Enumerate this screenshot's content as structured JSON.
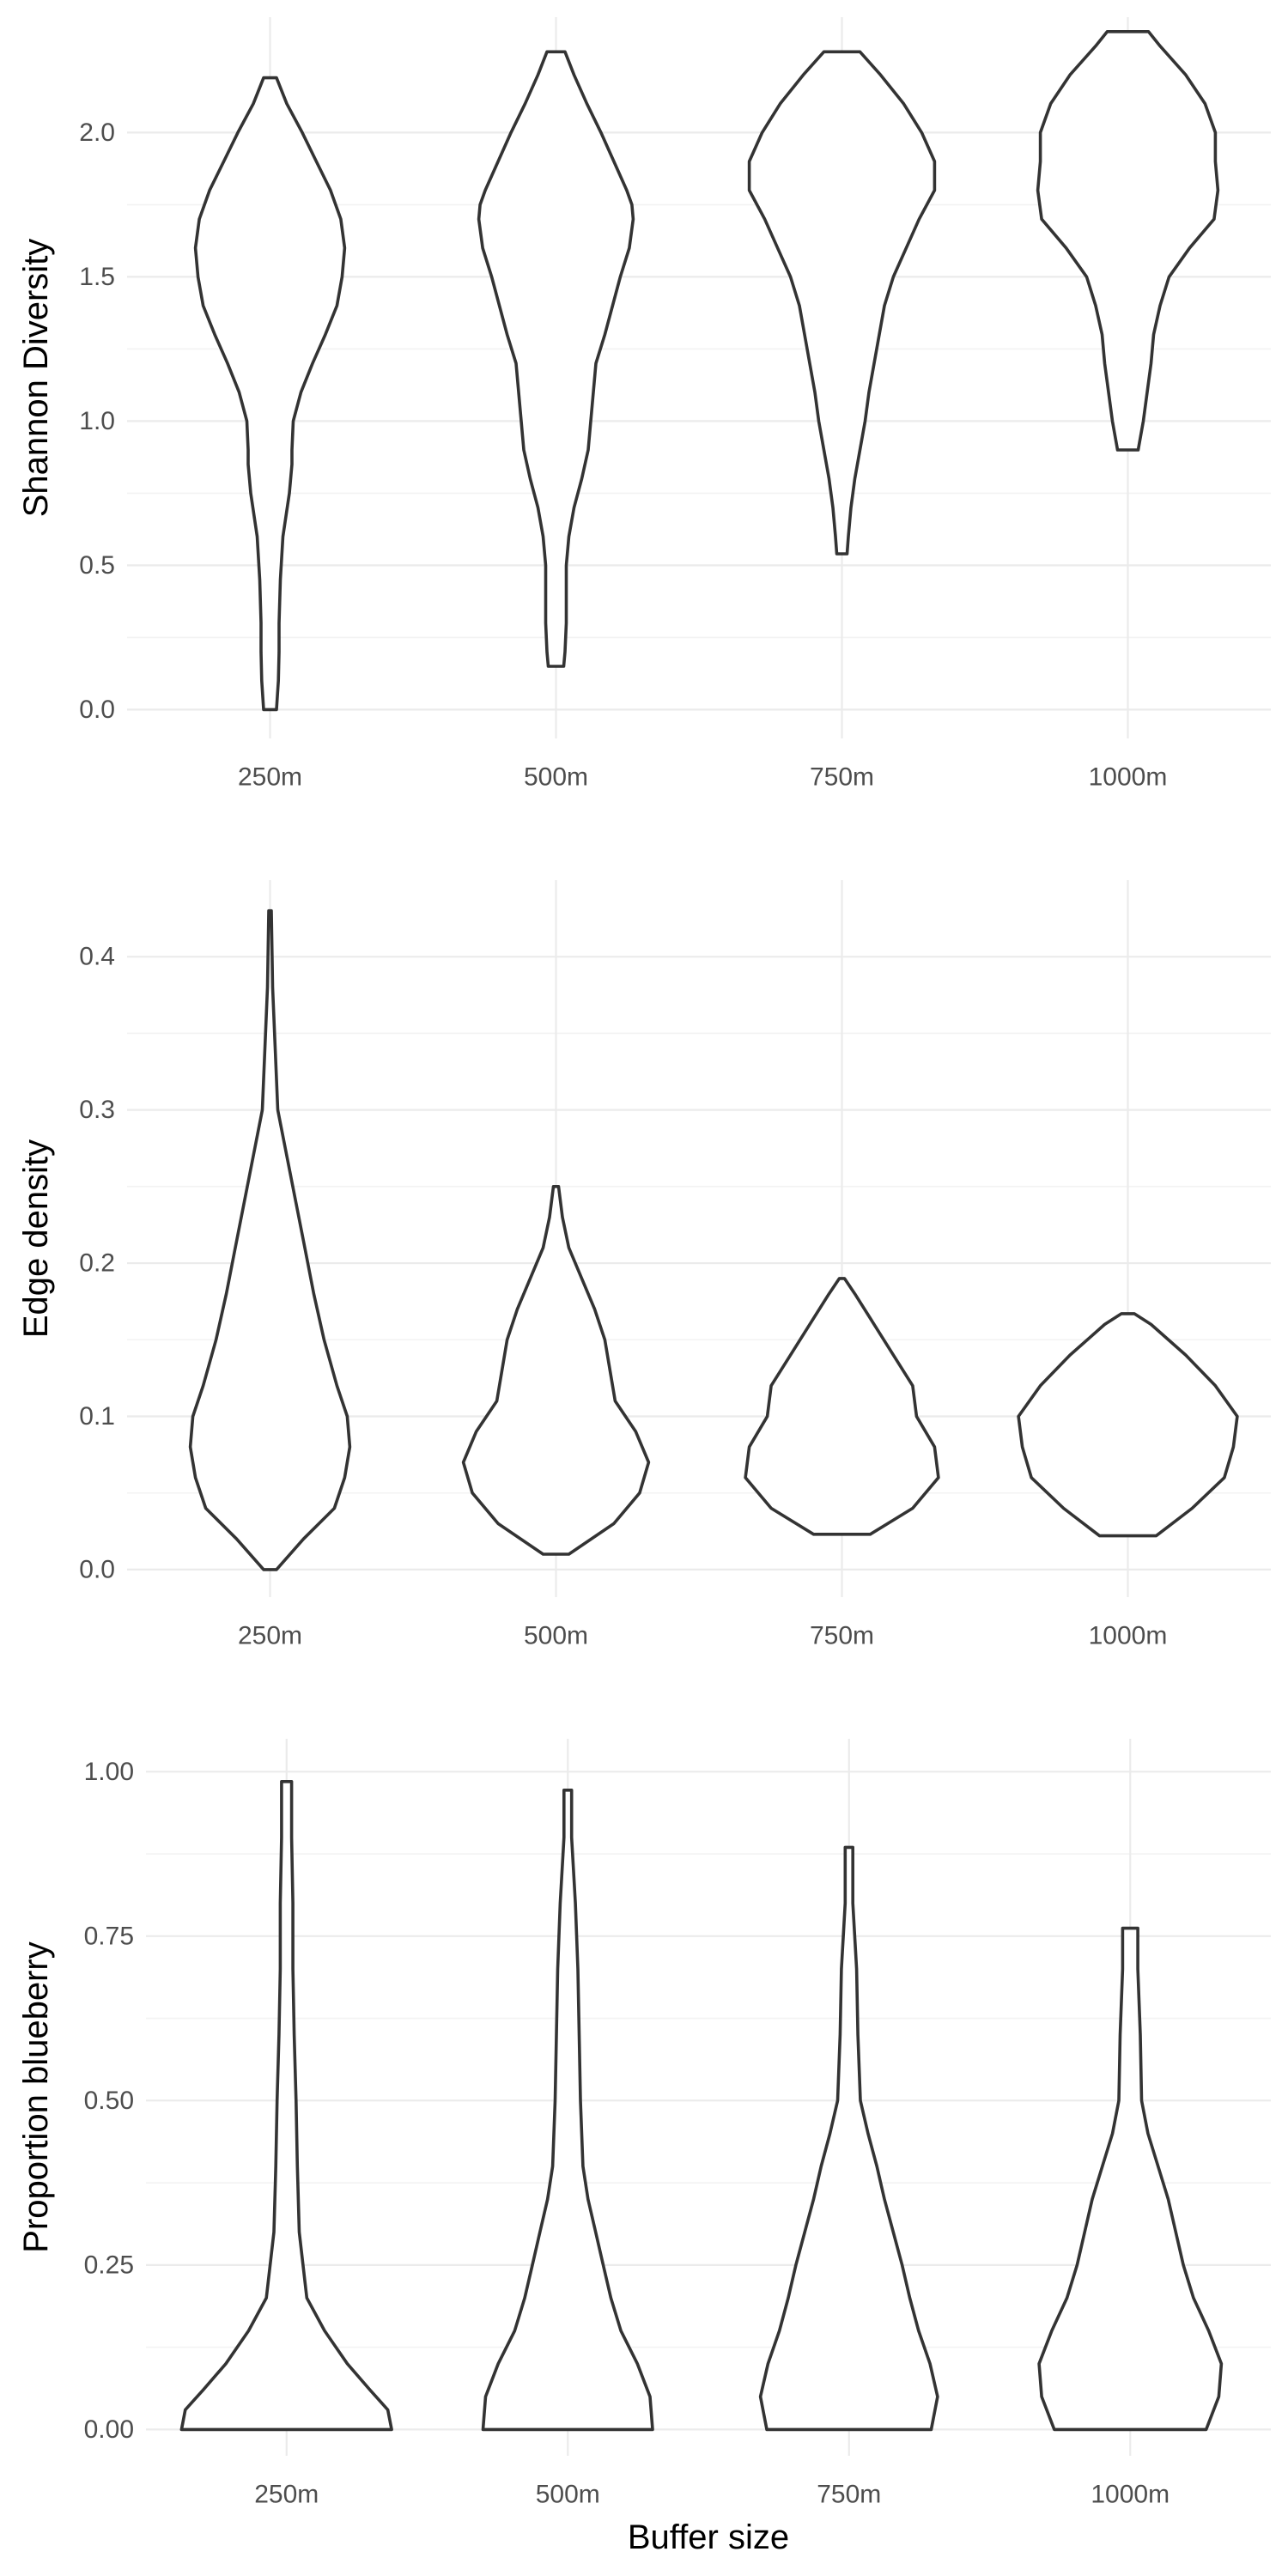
{
  "chart_data": [
    {
      "type": "violin",
      "ylabel": "Shannon Diversity",
      "xlabel": "",
      "categories": [
        "250m",
        "500m",
        "750m",
        "1000m"
      ],
      "ylim": [
        -0.1,
        2.4
      ],
      "yticks": [
        0.0,
        0.5,
        1.0,
        1.5,
        2.0
      ],
      "ytick_labels": [
        "0.0",
        "0.5",
        "1.0",
        "1.5",
        "2.0"
      ],
      "grid": true,
      "series": [
        {
          "category": "250m",
          "min": 0.0,
          "max": 2.19,
          "profile": [
            [
              0.0,
              0.05
            ],
            [
              0.1,
              0.065
            ],
            [
              0.2,
              0.07
            ],
            [
              0.3,
              0.07
            ],
            [
              0.45,
              0.08
            ],
            [
              0.6,
              0.1
            ],
            [
              0.75,
              0.15
            ],
            [
              0.85,
              0.17
            ],
            [
              0.9,
              0.17
            ],
            [
              1.0,
              0.18
            ],
            [
              1.1,
              0.24
            ],
            [
              1.2,
              0.33
            ],
            [
              1.3,
              0.43
            ],
            [
              1.4,
              0.52
            ],
            [
              1.5,
              0.56
            ],
            [
              1.6,
              0.58
            ],
            [
              1.7,
              0.55
            ],
            [
              1.8,
              0.47
            ],
            [
              1.9,
              0.36
            ],
            [
              2.0,
              0.25
            ],
            [
              2.1,
              0.13
            ],
            [
              2.19,
              0.05
            ]
          ]
        },
        {
          "category": "500m",
          "min": 0.15,
          "max": 2.28,
          "profile": [
            [
              0.15,
              0.06
            ],
            [
              0.2,
              0.07
            ],
            [
              0.3,
              0.08
            ],
            [
              0.4,
              0.08
            ],
            [
              0.5,
              0.08
            ],
            [
              0.6,
              0.1
            ],
            [
              0.7,
              0.14
            ],
            [
              0.8,
              0.2
            ],
            [
              0.9,
              0.25
            ],
            [
              1.0,
              0.27
            ],
            [
              1.1,
              0.29
            ],
            [
              1.2,
              0.31
            ],
            [
              1.3,
              0.38
            ],
            [
              1.4,
              0.44
            ],
            [
              1.5,
              0.5
            ],
            [
              1.6,
              0.57
            ],
            [
              1.7,
              0.6
            ],
            [
              1.75,
              0.59
            ],
            [
              1.8,
              0.55
            ],
            [
              1.9,
              0.45
            ],
            [
              2.0,
              0.35
            ],
            [
              2.1,
              0.24
            ],
            [
              2.2,
              0.14
            ],
            [
              2.28,
              0.07
            ]
          ]
        },
        {
          "category": "750m",
          "min": 0.54,
          "max": 2.28,
          "profile": [
            [
              0.54,
              0.04
            ],
            [
              0.6,
              0.05
            ],
            [
              0.7,
              0.07
            ],
            [
              0.8,
              0.1
            ],
            [
              0.9,
              0.14
            ],
            [
              1.0,
              0.18
            ],
            [
              1.1,
              0.21
            ],
            [
              1.2,
              0.25
            ],
            [
              1.3,
              0.29
            ],
            [
              1.4,
              0.33
            ],
            [
              1.5,
              0.4
            ],
            [
              1.6,
              0.5
            ],
            [
              1.7,
              0.6
            ],
            [
              1.8,
              0.72
            ],
            [
              1.9,
              0.72
            ],
            [
              2.0,
              0.62
            ],
            [
              2.1,
              0.48
            ],
            [
              2.2,
              0.3
            ],
            [
              2.28,
              0.14
            ]
          ]
        },
        {
          "category": "1000m",
          "min": 0.9,
          "max": 2.35,
          "profile": [
            [
              0.9,
              0.08
            ],
            [
              1.0,
              0.12
            ],
            [
              1.1,
              0.15
            ],
            [
              1.2,
              0.18
            ],
            [
              1.3,
              0.2
            ],
            [
              1.4,
              0.25
            ],
            [
              1.5,
              0.32
            ],
            [
              1.6,
              0.48
            ],
            [
              1.7,
              0.67
            ],
            [
              1.8,
              0.7
            ],
            [
              1.9,
              0.68
            ],
            [
              2.0,
              0.68
            ],
            [
              2.1,
              0.6
            ],
            [
              2.2,
              0.45
            ],
            [
              2.3,
              0.25
            ],
            [
              2.35,
              0.16
            ]
          ]
        }
      ]
    },
    {
      "type": "violin",
      "ylabel": "Edge density",
      "xlabel": "",
      "categories": [
        "250m",
        "500m",
        "750m",
        "1000m"
      ],
      "ylim": [
        -0.018,
        0.45
      ],
      "yticks": [
        0.0,
        0.1,
        0.2,
        0.3,
        0.4
      ],
      "ytick_labels": [
        "0.0",
        "0.1",
        "0.2",
        "0.3",
        "0.4"
      ],
      "grid": true,
      "series": [
        {
          "category": "250m",
          "min": 0.0,
          "max": 0.43,
          "profile": [
            [
              0.0,
              0.05
            ],
            [
              0.02,
              0.26
            ],
            [
              0.04,
              0.5
            ],
            [
              0.06,
              0.58
            ],
            [
              0.08,
              0.62
            ],
            [
              0.1,
              0.6
            ],
            [
              0.12,
              0.52
            ],
            [
              0.15,
              0.42
            ],
            [
              0.18,
              0.34
            ],
            [
              0.21,
              0.27
            ],
            [
              0.24,
              0.2
            ],
            [
              0.27,
              0.13
            ],
            [
              0.3,
              0.06
            ],
            [
              0.34,
              0.04
            ],
            [
              0.38,
              0.02
            ],
            [
              0.43,
              0.01
            ]
          ]
        },
        {
          "category": "500m",
          "min": 0.01,
          "max": 0.25,
          "profile": [
            [
              0.01,
              0.1
            ],
            [
              0.03,
              0.45
            ],
            [
              0.05,
              0.65
            ],
            [
              0.07,
              0.72
            ],
            [
              0.09,
              0.62
            ],
            [
              0.11,
              0.46
            ],
            [
              0.13,
              0.42
            ],
            [
              0.15,
              0.38
            ],
            [
              0.17,
              0.3
            ],
            [
              0.19,
              0.2
            ],
            [
              0.21,
              0.1
            ],
            [
              0.23,
              0.05
            ],
            [
              0.25,
              0.02
            ]
          ]
        },
        {
          "category": "750m",
          "min": 0.023,
          "max": 0.19,
          "profile": [
            [
              0.023,
              0.22
            ],
            [
              0.04,
              0.55
            ],
            [
              0.06,
              0.75
            ],
            [
              0.08,
              0.72
            ],
            [
              0.1,
              0.58
            ],
            [
              0.12,
              0.55
            ],
            [
              0.14,
              0.4
            ],
            [
              0.16,
              0.25
            ],
            [
              0.18,
              0.1
            ],
            [
              0.19,
              0.02
            ]
          ]
        },
        {
          "category": "1000m",
          "min": 0.022,
          "max": 0.167,
          "profile": [
            [
              0.022,
              0.22
            ],
            [
              0.04,
              0.5
            ],
            [
              0.06,
              0.75
            ],
            [
              0.08,
              0.82
            ],
            [
              0.1,
              0.85
            ],
            [
              0.12,
              0.68
            ],
            [
              0.14,
              0.45
            ],
            [
              0.16,
              0.18
            ],
            [
              0.167,
              0.05
            ]
          ]
        }
      ]
    },
    {
      "type": "violin",
      "ylabel": "Proportion blueberry",
      "xlabel": "Buffer size",
      "categories": [
        "250m",
        "500m",
        "750m",
        "1000m"
      ],
      "ylim": [
        -0.04,
        1.05
      ],
      "yticks": [
        0.0,
        0.25,
        0.5,
        0.75,
        1.0
      ],
      "ytick_labels": [
        "0.00",
        "0.25",
        "0.50",
        "0.75",
        "1.00"
      ],
      "grid": true,
      "series": [
        {
          "category": "250m",
          "min": 0.0,
          "max": 0.985,
          "profile": [
            [
              0.0,
              0.83
            ],
            [
              0.03,
              0.8
            ],
            [
              0.06,
              0.66
            ],
            [
              0.1,
              0.48
            ],
            [
              0.15,
              0.3
            ],
            [
              0.2,
              0.16
            ],
            [
              0.3,
              0.1
            ],
            [
              0.4,
              0.085
            ],
            [
              0.5,
              0.075
            ],
            [
              0.6,
              0.06
            ],
            [
              0.7,
              0.05
            ],
            [
              0.8,
              0.05
            ],
            [
              0.9,
              0.04
            ],
            [
              0.985,
              0.04
            ]
          ]
        },
        {
          "category": "500m",
          "min": 0.0,
          "max": 0.972,
          "profile": [
            [
              0.0,
              0.67
            ],
            [
              0.05,
              0.65
            ],
            [
              0.1,
              0.55
            ],
            [
              0.15,
              0.42
            ],
            [
              0.2,
              0.34
            ],
            [
              0.25,
              0.28
            ],
            [
              0.3,
              0.22
            ],
            [
              0.35,
              0.16
            ],
            [
              0.4,
              0.12
            ],
            [
              0.5,
              0.1
            ],
            [
              0.6,
              0.09
            ],
            [
              0.7,
              0.08
            ],
            [
              0.8,
              0.06
            ],
            [
              0.9,
              0.03
            ],
            [
              0.972,
              0.03
            ]
          ]
        },
        {
          "category": "750m",
          "min": 0.0,
          "max": 0.885,
          "profile": [
            [
              0.0,
              0.65
            ],
            [
              0.05,
              0.7
            ],
            [
              0.1,
              0.64
            ],
            [
              0.15,
              0.55
            ],
            [
              0.2,
              0.48
            ],
            [
              0.25,
              0.42
            ],
            [
              0.3,
              0.35
            ],
            [
              0.35,
              0.28
            ],
            [
              0.4,
              0.22
            ],
            [
              0.45,
              0.15
            ],
            [
              0.5,
              0.09
            ],
            [
              0.6,
              0.07
            ],
            [
              0.7,
              0.06
            ],
            [
              0.8,
              0.03
            ],
            [
              0.885,
              0.03
            ]
          ]
        },
        {
          "category": "1000m",
          "min": 0.0,
          "max": 0.762,
          "profile": [
            [
              0.0,
              0.6
            ],
            [
              0.05,
              0.7
            ],
            [
              0.1,
              0.72
            ],
            [
              0.15,
              0.62
            ],
            [
              0.2,
              0.5
            ],
            [
              0.25,
              0.42
            ],
            [
              0.3,
              0.36
            ],
            [
              0.35,
              0.3
            ],
            [
              0.4,
              0.22
            ],
            [
              0.45,
              0.14
            ],
            [
              0.5,
              0.09
            ],
            [
              0.6,
              0.08
            ],
            [
              0.7,
              0.06
            ],
            [
              0.762,
              0.06
            ]
          ]
        }
      ]
    }
  ]
}
